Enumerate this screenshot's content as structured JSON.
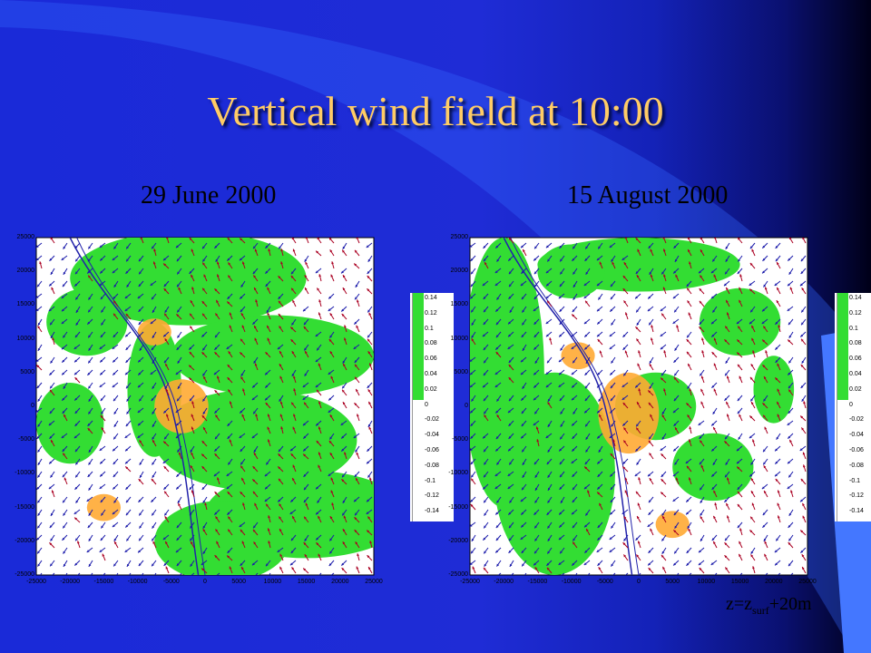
{
  "slide": {
    "title": "Vertical wind field at 10:00",
    "caption_main": "z=z",
    "caption_sub": "surf",
    "caption_tail": "+20m"
  },
  "panels": [
    {
      "date": "29 June 2000"
    },
    {
      "date": "15 August 2000"
    }
  ],
  "axes": {
    "y_ticks": [
      "25000",
      "20000",
      "15000",
      "10000",
      "5000",
      "0",
      "-5000",
      "-10000",
      "-15000",
      "-20000",
      "-25000"
    ],
    "x_ticks": [
      "-25000",
      "-20000",
      "-15000",
      "-10000",
      "-5000",
      "0",
      "5000",
      "10000",
      "15000",
      "20000",
      "25000"
    ]
  },
  "colorbar": {
    "labels": [
      "0.14",
      "0.12",
      "0.1",
      "0.08",
      "0.06",
      "0.04",
      "0.02",
      "0",
      "-0.02",
      "-0.04",
      "-0.06",
      "-0.08",
      "-0.1",
      "-0.12",
      "-0.14"
    ],
    "positive_color": "#33dd33",
    "negative_color": "#ffffff"
  },
  "colors": {
    "title": "#ffcc66",
    "updraft": "#33dd33",
    "downdraft_orange": "#ffaa33",
    "arrow_blue": "#1a1aaa",
    "arrow_red": "#aa0022"
  }
}
